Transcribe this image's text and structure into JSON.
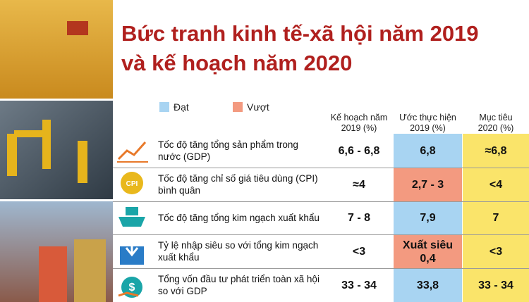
{
  "title_lines": [
    "Bức tranh kinh tế-xã hội năm 2019",
    "và kế hoạch năm 2020"
  ],
  "legend": [
    {
      "label": "Đạt",
      "color": "#a8d4f2"
    },
    {
      "label": "Vượt",
      "color": "#f39a80"
    }
  ],
  "columns": [
    "Kế hoạch năm 2019 (%)",
    "Ước thực hiện 2019 (%)",
    "Mục tiêu 2020 (%)"
  ],
  "rows": [
    {
      "label": "Tốc độ tăng tổng sản phẩm trong nước (GDP)",
      "values": [
        "6,6 - 6,8",
        "6,8",
        "≈6,8"
      ]
    },
    {
      "label": "Tốc độ tăng chỉ số giá tiêu dùng (CPI) bình quân",
      "values": [
        "≈4",
        "2,7 - 3",
        "<4"
      ]
    },
    {
      "label": "Tốc độ tăng tổng kim ngạch xuất khẩu",
      "values": [
        "7 - 8",
        "7,9",
        "7"
      ]
    },
    {
      "label": "Tỷ lệ nhập siêu so với tổng kim ngạch xuất khẩu",
      "values": [
        "<3",
        "Xuất siêu 0,4",
        "<3"
      ]
    },
    {
      "label": "Tổng vốn đầu tư phát triển toàn xã hội so với GDP",
      "values": [
        "33 - 34",
        "33,8",
        "33 - 34"
      ]
    }
  ]
}
